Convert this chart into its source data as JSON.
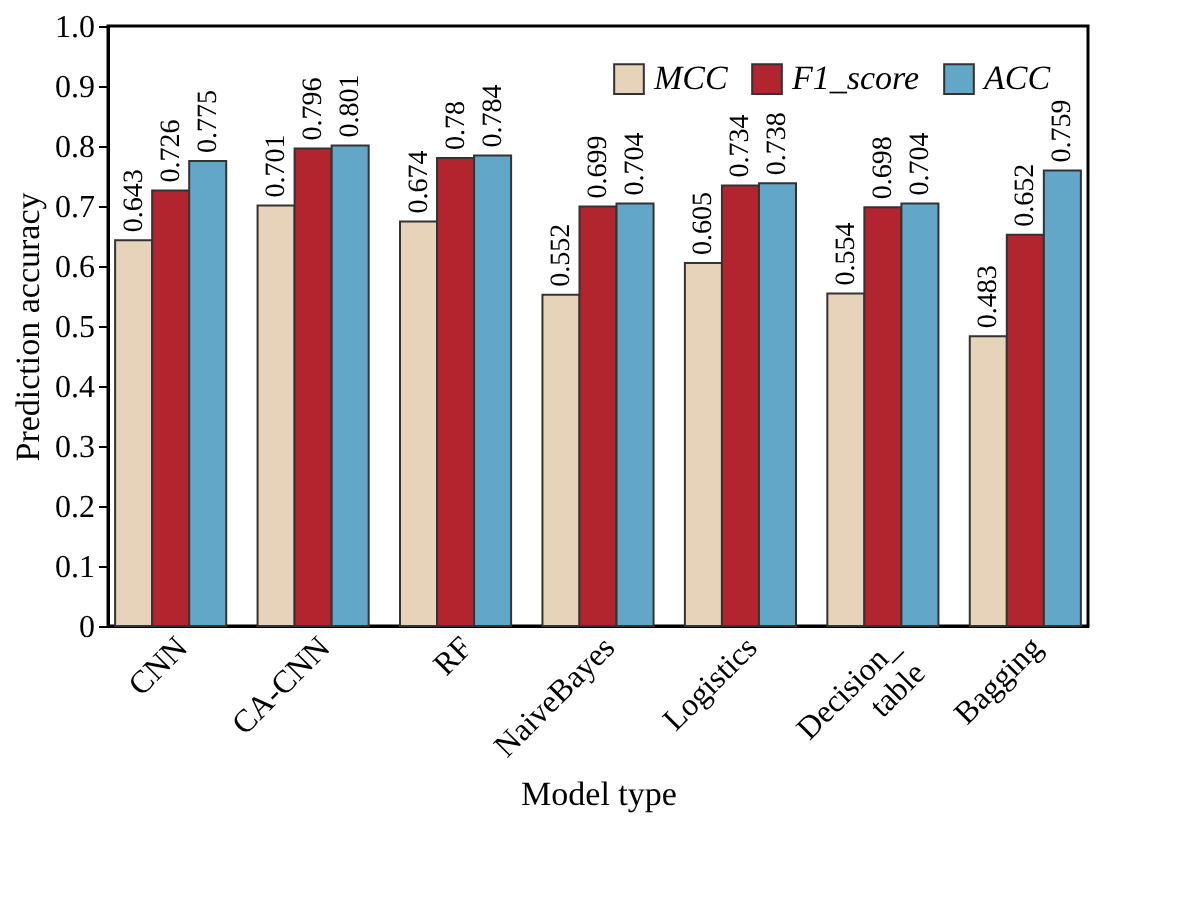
{
  "chart_data": {
    "type": "bar",
    "xlabel": "Model type",
    "ylabel": "Prediction accuracy",
    "categories": [
      "CNN",
      "CA-CNN",
      "RF",
      "NaiveBayes",
      "Logistics",
      "Decision_\ntable",
      "Bagging"
    ],
    "series": [
      {
        "name": "MCC",
        "color": "#e6d3b9",
        "values": [
          0.643,
          0.701,
          0.674,
          0.552,
          0.605,
          0.554,
          0.483
        ]
      },
      {
        "name": "F1_score",
        "color": "#b2252f",
        "values": [
          0.726,
          0.796,
          0.78,
          0.699,
          0.734,
          0.698,
          0.652
        ]
      },
      {
        "name": "ACC",
        "color": "#62a6c8",
        "values": [
          0.775,
          0.801,
          0.784,
          0.704,
          0.738,
          0.704,
          0.759
        ]
      }
    ],
    "ylim": [
      0,
      1
    ],
    "yticks": [
      0,
      0.1,
      0.2,
      0.3,
      0.4,
      0.5,
      0.6,
      0.7,
      0.8,
      0.9,
      {
        "value": 1,
        "label": "1.0"
      }
    ],
    "data_labels": true,
    "legend": "top right",
    "grid": false
  }
}
